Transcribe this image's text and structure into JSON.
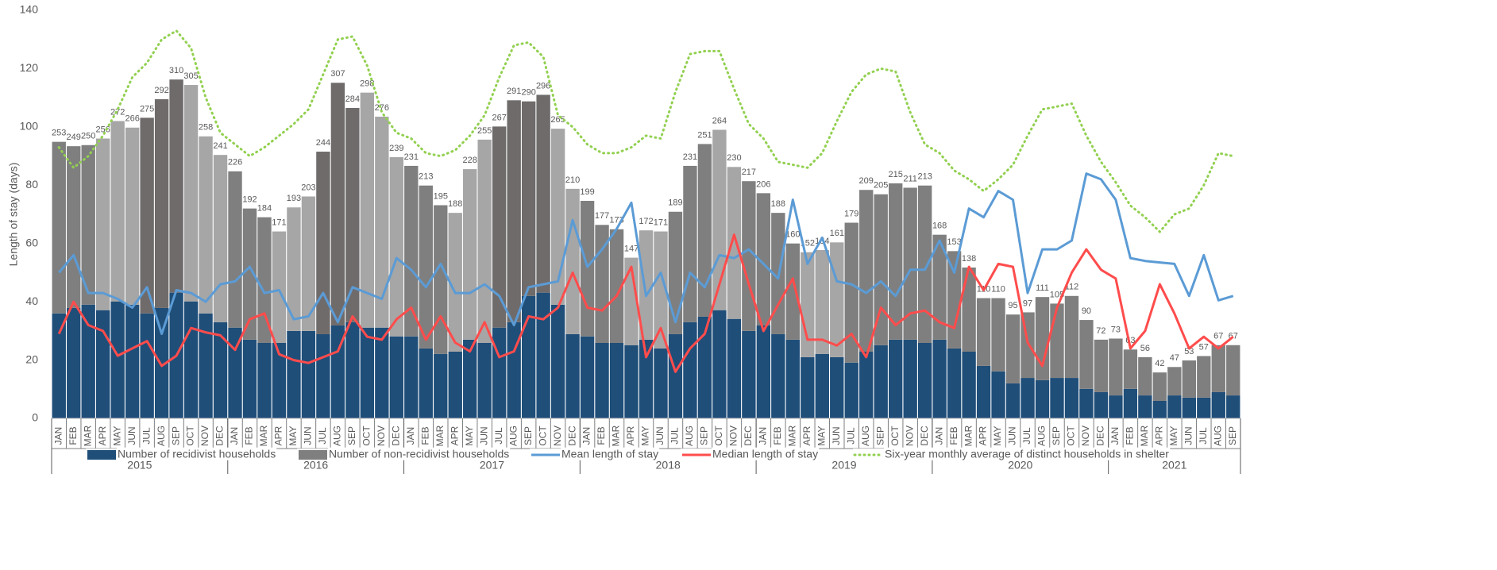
{
  "chart_data": {
    "type": "bar-line",
    "y_label": "Length of stay (days)",
    "ylim": [
      0,
      140
    ],
    "yticks": [
      0,
      20,
      40,
      60,
      80,
      100,
      120,
      140
    ],
    "y2lim": [
      0,
      373.3
    ],
    "categories": [
      "JAN",
      "FEB",
      "MAR",
      "APR",
      "MAY",
      "JUN",
      "JUL",
      "AUG",
      "SEP",
      "OCT",
      "NOV",
      "DEC",
      "JAN",
      "FEB",
      "MAR",
      "APR",
      "MAY",
      "JUN",
      "JUL",
      "AUG",
      "SEP",
      "OCT",
      "NOV",
      "DEC",
      "JAN",
      "FEB",
      "MAR",
      "APR",
      "MAY",
      "JUN",
      "JUL",
      "AUG",
      "SEP",
      "OCT",
      "NOV",
      "DEC",
      "JAN",
      "FEB",
      "MAR",
      "APR",
      "MAY",
      "JUN",
      "JUL",
      "AUG",
      "SEP",
      "OCT",
      "NOV",
      "DEC",
      "JAN",
      "FEB",
      "MAR",
      "APR",
      "MAY",
      "JUN",
      "JUL",
      "AUG",
      "SEP",
      "OCT",
      "NOV",
      "DEC",
      "JAN",
      "FEB",
      "MAR",
      "APR",
      "MAY",
      "JUN",
      "JUL",
      "AUG",
      "SEP",
      "OCT",
      "NOV",
      "DEC",
      "JAN",
      "FEB",
      "MAR",
      "APR",
      "MAY",
      "JUN",
      "JUL",
      "AUG",
      "SEP"
    ],
    "years": [
      "2015",
      "2016",
      "2017",
      "2018",
      "2019",
      "2020",
      "2021"
    ],
    "totals": [
      253,
      249,
      250,
      256,
      272,
      266,
      275,
      292,
      310,
      305,
      258,
      241,
      226,
      192,
      184,
      171,
      193,
      203,
      244,
      307,
      284,
      298,
      276,
      239,
      231,
      213,
      195,
      188,
      228,
      255,
      267,
      291,
      290,
      296,
      265,
      210,
      199,
      177,
      173,
      147,
      172,
      171,
      189,
      231,
      251,
      264,
      230,
      217,
      206,
      188,
      160,
      152,
      154,
      161,
      179,
      209,
      205,
      215,
      211,
      213,
      168,
      153,
      138,
      110,
      110,
      95,
      97,
      111,
      105,
      112,
      90,
      72,
      73,
      63,
      56,
      42,
      47,
      53,
      57,
      67,
      67
    ],
    "series": [
      {
        "name": "Number of recidivist households",
        "kind": "bar",
        "axis": "y2",
        "color": "#1f4e79",
        "values": [
          96,
          101,
          104,
          99,
          107,
          104,
          96,
          101,
          115,
          107,
          96,
          88,
          83,
          72,
          69,
          69,
          80,
          80,
          77,
          85,
          88,
          83,
          83,
          75,
          75,
          64,
          59,
          61,
          72,
          69,
          83,
          88,
          112,
          115,
          104,
          77,
          75,
          69,
          69,
          67,
          72,
          64,
          77,
          88,
          93,
          99,
          91,
          80,
          85,
          77,
          72,
          56,
          59,
          56,
          51,
          61,
          67,
          72,
          72,
          69,
          72,
          64,
          61,
          48,
          43,
          32,
          37,
          35,
          37,
          37,
          27,
          24,
          21,
          27,
          21,
          16,
          21,
          19,
          19,
          24,
          21
        ]
      },
      {
        "name": "Number of non-recidivist households",
        "kind": "bar",
        "axis": "y2",
        "color": "#7f7f7f",
        "values": [
          157,
          148,
          146,
          157,
          165,
          162,
          179,
          191,
          195,
          198,
          162,
          153,
          143,
          120,
          115,
          102,
          113,
          123,
          167,
          222,
          196,
          215,
          193,
          164,
          156,
          149,
          136,
          127,
          156,
          186,
          184,
          203,
          178,
          181,
          161,
          133,
          124,
          108,
          104,
          80,
          100,
          107,
          112,
          143,
          158,
          165,
          139,
          137,
          121,
          111,
          88,
          96,
          95,
          105,
          128,
          148,
          138,
          143,
          139,
          144,
          96,
          89,
          77,
          62,
          67,
          63,
          60,
          76,
          68,
          75,
          63,
          48,
          52,
          36,
          35,
          26,
          26,
          34,
          38,
          43,
          46
        ],
        "colors": [
          "#7f7f7f",
          "#7f7f7f",
          "#7f7f7f",
          "#a6a6a6",
          "#a6a6a6",
          "#a6a6a6",
          "#6f6b6b",
          "#6f6b6b",
          "#6f6b6b",
          "#a6a6a6",
          "#a6a6a6",
          "#a6a6a6",
          "#7f7f7f",
          "#7f7f7f",
          "#7f7f7f",
          "#a6a6a6",
          "#a6a6a6",
          "#a6a6a6",
          "#6f6b6b",
          "#6f6b6b",
          "#6f6b6b",
          "#a6a6a6",
          "#a6a6a6",
          "#a6a6a6",
          "#7f7f7f",
          "#7f7f7f",
          "#7f7f7f",
          "#a6a6a6",
          "#a6a6a6",
          "#a6a6a6",
          "#6f6b6b",
          "#6f6b6b",
          "#6f6b6b",
          "#6f6b6b",
          "#a6a6a6",
          "#a6a6a6",
          "#7f7f7f",
          "#7f7f7f",
          "#7f7f7f",
          "#a6a6a6",
          "#a6a6a6",
          "#a6a6a6",
          "#7f7f7f",
          "#7f7f7f",
          "#7f7f7f",
          "#a6a6a6",
          "#a6a6a6",
          "#7f7f7f",
          "#7f7f7f",
          "#7f7f7f",
          "#7f7f7f",
          "#a6a6a6",
          "#a6a6a6",
          "#a6a6a6",
          "#7f7f7f",
          "#7f7f7f",
          "#7f7f7f",
          "#7f7f7f",
          "#7f7f7f",
          "#7f7f7f",
          "#7f7f7f",
          "#7f7f7f",
          "#7f7f7f",
          "#7f7f7f",
          "#7f7f7f",
          "#7f7f7f",
          "#7f7f7f",
          "#7f7f7f",
          "#7f7f7f",
          "#7f7f7f",
          "#7f7f7f",
          "#7f7f7f",
          "#7f7f7f",
          "#7f7f7f",
          "#7f7f7f",
          "#7f7f7f",
          "#7f7f7f",
          "#7f7f7f",
          "#7f7f7f",
          "#7f7f7f",
          "#7f7f7f"
        ]
      },
      {
        "name": "Mean length of stay",
        "kind": "line",
        "color": "#5b9bd5",
        "style": "solid",
        "values": [
          50,
          56,
          43,
          43,
          41,
          38,
          45,
          29,
          44,
          43,
          40,
          46,
          47,
          52,
          43,
          44,
          34,
          35,
          43,
          33,
          45,
          43,
          41,
          55,
          51,
          45,
          53,
          43,
          43,
          46,
          42,
          32,
          45,
          46,
          47,
          68,
          52,
          58,
          65,
          74,
          42,
          50,
          33,
          50,
          45,
          56,
          55,
          58,
          53,
          48,
          75,
          53,
          62,
          47,
          46,
          43,
          47,
          42,
          51,
          51,
          61,
          50,
          72,
          69,
          78,
          75,
          43,
          58,
          58,
          61,
          84,
          82,
          75,
          55,
          54,
          53.5,
          53,
          42,
          56,
          40.5,
          42
        ]
      },
      {
        "name": "Median length of stay",
        "kind": "line",
        "color": "#ff4c4c",
        "style": "solid",
        "values": [
          29,
          40,
          32,
          30,
          21.5,
          24,
          26.5,
          18,
          21.5,
          31,
          29.5,
          28.5,
          23.5,
          34,
          36,
          22,
          20,
          19,
          21,
          23,
          35,
          28,
          27,
          34,
          38,
          27,
          35,
          26,
          23,
          33,
          21,
          23,
          35,
          34,
          38,
          50,
          38,
          37,
          42,
          52,
          21,
          31,
          16,
          24,
          29,
          46,
          63,
          46,
          30,
          39,
          48,
          27,
          27,
          25,
          29,
          21,
          38,
          32,
          36,
          37,
          33,
          31,
          52,
          44,
          53,
          52,
          26,
          18,
          38,
          50,
          58,
          51,
          48,
          24,
          30,
          46,
          36,
          24,
          28,
          24,
          28
        ]
      },
      {
        "name": "Six-year monthly average of distinct households in shelter",
        "kind": "line",
        "color": "#92d050",
        "style": "dotted",
        "values": [
          93,
          86,
          90,
          97,
          106,
          117,
          122,
          130,
          133,
          127,
          110,
          98,
          94,
          90,
          93,
          97,
          101,
          106,
          118,
          130,
          131,
          121,
          105,
          98,
          96,
          91,
          90,
          92,
          97,
          104,
          117,
          128,
          129,
          124,
          104,
          100,
          94,
          91,
          91,
          93,
          97,
          96,
          112,
          125,
          126,
          126,
          113,
          101,
          96,
          88,
          87,
          86,
          91,
          102,
          112,
          118,
          120,
          119,
          105,
          94,
          91,
          85,
          82,
          78,
          82,
          87,
          97,
          106,
          107,
          108,
          97,
          88,
          81,
          73,
          69,
          64,
          70,
          72,
          80,
          91,
          90
        ]
      }
    ]
  }
}
